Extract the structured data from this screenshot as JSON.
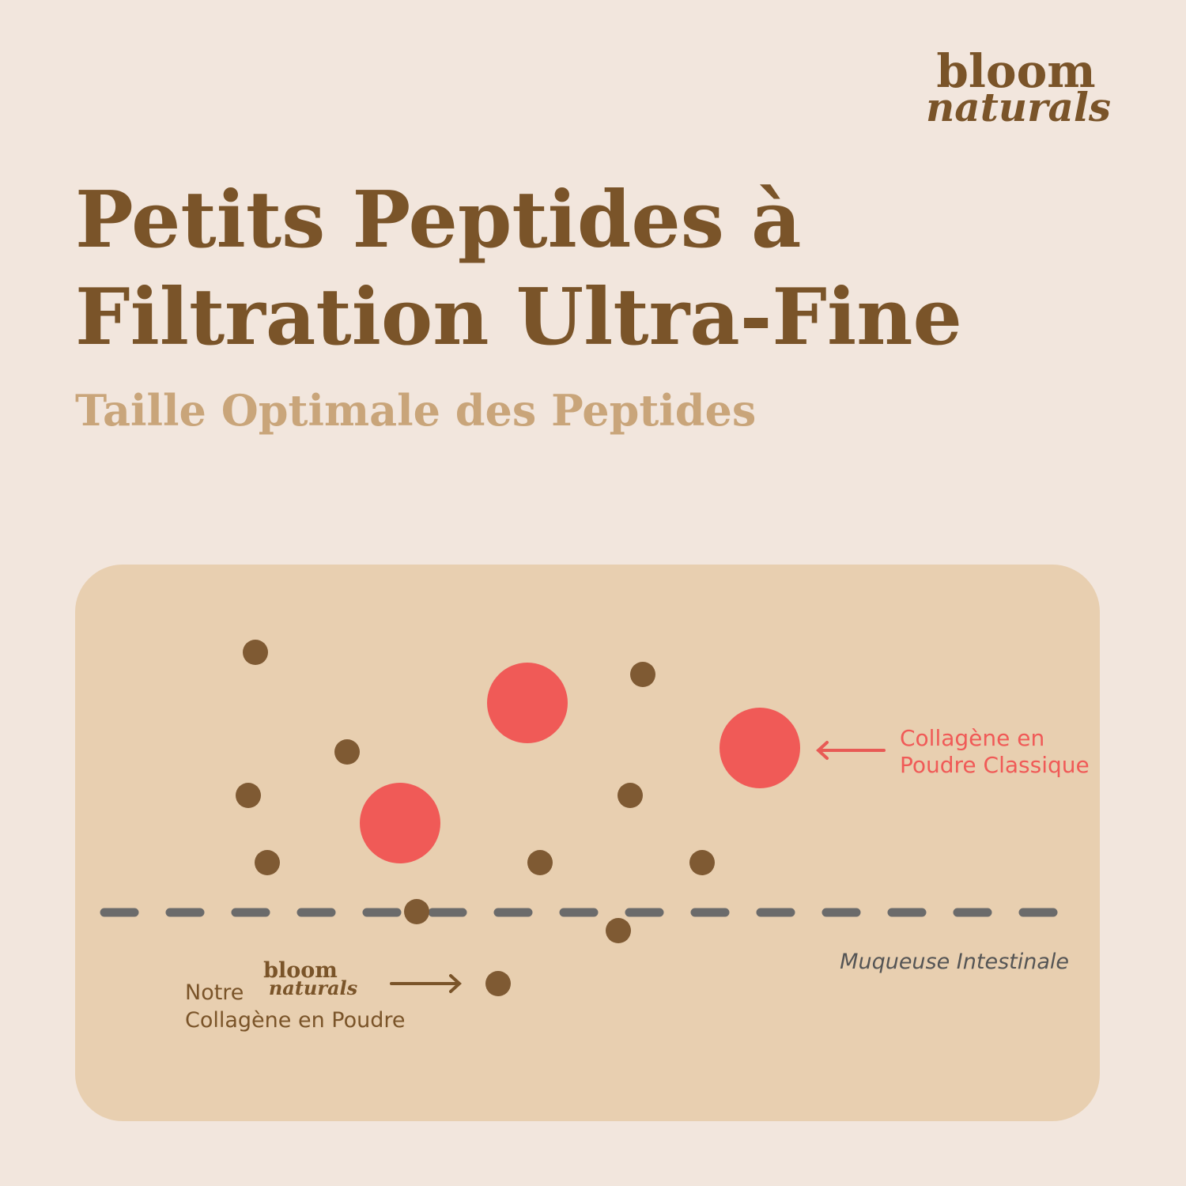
{
  "logo": {
    "line1": "bloom",
    "line2": "naturals"
  },
  "header": {
    "title_line1": "Petits Peptides à",
    "title_line2": "Filtration Ultra-Fine",
    "subtitle": "Taille Optimale des Peptides"
  },
  "diagram": {
    "classic_label_line1": "Collagène en",
    "classic_label_line2": "Poudre Classique",
    "membrane_label": "Muqueuse Intestinale",
    "ours_label_line1": "Notre",
    "ours_logo_line1": "bloom",
    "ours_logo_line2": "naturals",
    "ours_label_line2": "Collagène en Poudre"
  }
}
